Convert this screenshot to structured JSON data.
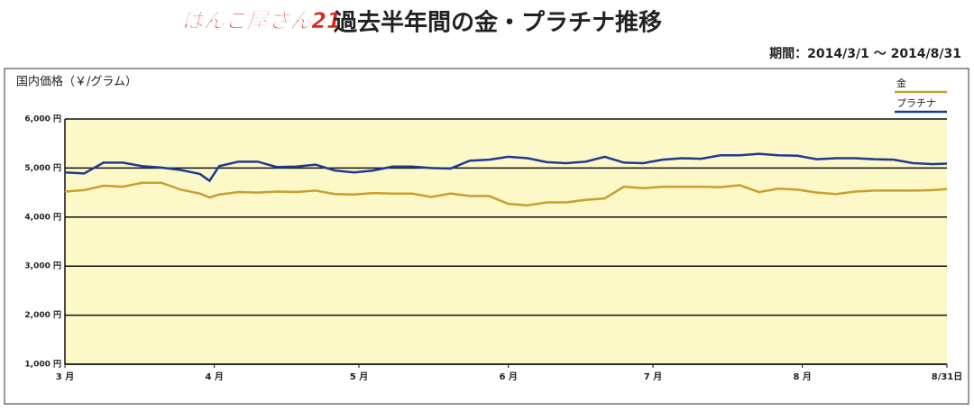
{
  "logo": "はんこ屋さん21",
  "chart_data": {
    "type": "line",
    "title": "過去半年間の金・プラチナ推移",
    "subtitle": "期間：2014/3/1 〜 2014/8/31",
    "ylabel": "国内価格（￥/グラム）",
    "x": [
      0,
      4,
      8,
      12,
      16,
      20,
      24,
      28,
      30,
      32,
      36,
      40,
      44,
      48,
      52,
      56,
      60,
      64,
      68,
      72,
      76,
      80,
      84,
      88,
      92,
      96,
      100,
      104,
      108,
      112,
      116,
      120,
      124,
      128,
      132,
      136,
      140,
      144,
      148,
      152,
      156,
      160,
      164,
      168,
      172,
      176,
      180,
      183
    ],
    "xlim": [
      0,
      183
    ],
    "xticks": [
      {
        "value": 0,
        "label": "3 月"
      },
      {
        "value": 31,
        "label": "4 月"
      },
      {
        "value": 61,
        "label": "5 月"
      },
      {
        "value": 92,
        "label": "6 月"
      },
      {
        "value": 122,
        "label": "7 月"
      },
      {
        "value": 153,
        "label": "8 月"
      },
      {
        "value": 183,
        "label": "8/31日"
      }
    ],
    "ylim": [
      1000,
      6000
    ],
    "yticks": [
      {
        "value": 1000,
        "label": "1,000 円"
      },
      {
        "value": 2000,
        "label": "2,000 円"
      },
      {
        "value": 3000,
        "label": "3,000 円"
      },
      {
        "value": 4000,
        "label": "4,000 円"
      },
      {
        "value": 5000,
        "label": "5,000 円"
      },
      {
        "value": 6000,
        "label": "6,000 円"
      }
    ],
    "grid": true,
    "legend": "upper right",
    "series": [
      {
        "name": "金",
        "color": "#c9a02a",
        "values": [
          4520,
          4550,
          4640,
          4620,
          4700,
          4700,
          4560,
          4480,
          4400,
          4460,
          4510,
          4500,
          4520,
          4510,
          4540,
          4470,
          4460,
          4490,
          4480,
          4480,
          4410,
          4480,
          4430,
          4430,
          4270,
          4240,
          4300,
          4300,
          4350,
          4380,
          4620,
          4590,
          4620,
          4620,
          4620,
          4610,
          4650,
          4510,
          4580,
          4560,
          4500,
          4470,
          4520,
          4540,
          4540,
          4540,
          4550,
          4570
        ]
      },
      {
        "name": "プラチナ",
        "color": "#1f3a93",
        "values": [
          4910,
          4890,
          5110,
          5110,
          5040,
          5010,
          4960,
          4880,
          4740,
          5040,
          5130,
          5130,
          5020,
          5030,
          5070,
          4950,
          4910,
          4950,
          5030,
          5030,
          5000,
          4990,
          5150,
          5170,
          5230,
          5200,
          5120,
          5100,
          5130,
          5230,
          5110,
          5100,
          5170,
          5200,
          5190,
          5260,
          5260,
          5290,
          5260,
          5250,
          5180,
          5200,
          5200,
          5180,
          5170,
          5100,
          5080,
          5090
        ]
      }
    ]
  }
}
